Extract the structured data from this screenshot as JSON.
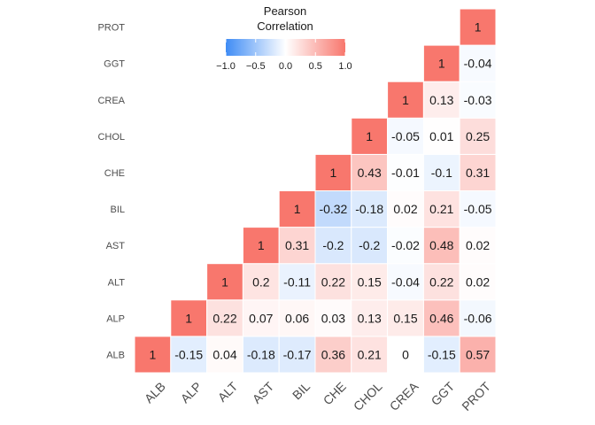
{
  "chart_data": {
    "type": "heatmap",
    "variables": [
      "ALB",
      "ALP",
      "ALT",
      "AST",
      "BIL",
      "CHE",
      "CHOL",
      "CREA",
      "GGT",
      "PROT"
    ],
    "matrix_lower_triangle": [
      [
        "1"
      ],
      [
        "-0.15",
        "1"
      ],
      [
        "0.04",
        "0.22",
        "1"
      ],
      [
        "-0.18",
        "0.07",
        "0.2",
        "1"
      ],
      [
        "-0.17",
        "0.06",
        "-0.11",
        "0.31",
        "1"
      ],
      [
        "0.36",
        "0.03",
        "0.22",
        "-0.2",
        "-0.32",
        "1"
      ],
      [
        "0.21",
        "0.13",
        "0.15",
        "-0.2",
        "-0.18",
        "0.43",
        "1"
      ],
      [
        "0",
        "0.15",
        "-0.04",
        "-0.02",
        "0.02",
        "-0.01",
        "-0.05",
        "1"
      ],
      [
        "-0.15",
        "0.46",
        "0.22",
        "0.48",
        "0.21",
        "-0.1",
        "0.01",
        "0.13",
        "1"
      ],
      [
        "0.57",
        "-0.06",
        "0.02",
        "0.02",
        "-0.05",
        "0.31",
        "0.25",
        "-0.03",
        "-0.04",
        "1"
      ]
    ],
    "legend": {
      "title_line1": "Pearson",
      "title_line2": "Correlation",
      "ticks": [
        "−1.0",
        "−0.5",
        "0.0",
        "0.5",
        "1.0"
      ],
      "tick_values": [
        -1,
        -0.5,
        0,
        0.5,
        1
      ],
      "placement": "top-center"
    },
    "colors": {
      "low": "#3f8cf5",
      "mid": "#ffffff",
      "high": "#f8776d"
    },
    "value_range": [
      -1,
      1
    ]
  }
}
